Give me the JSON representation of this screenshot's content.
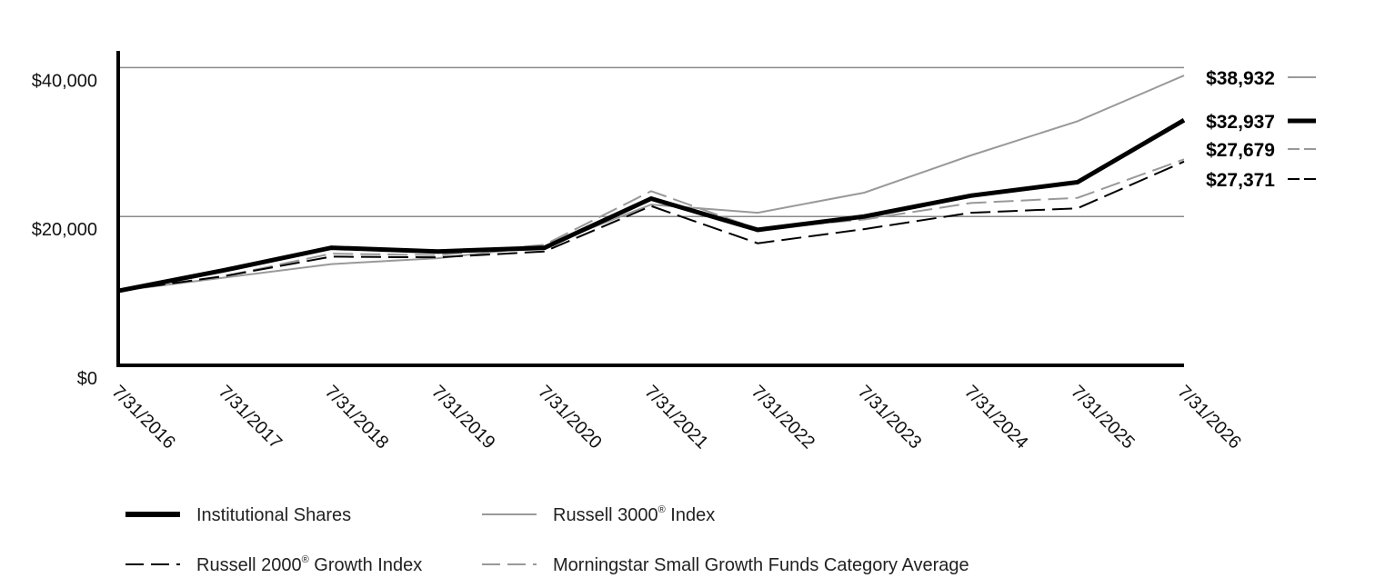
{
  "chart_data": {
    "type": "line",
    "categories": [
      "7/31/2016",
      "7/31/2017",
      "7/31/2018",
      "7/31/2019",
      "7/31/2020",
      "7/31/2021",
      "7/31/2022",
      "7/31/2023",
      "7/31/2024",
      "7/31/2025",
      "7/31/2026"
    ],
    "ylim": [
      0,
      42000
    ],
    "yticks": [
      {
        "value": 0,
        "label": "$0"
      },
      {
        "value": 20000,
        "label": "$20,000"
      },
      {
        "value": 40000,
        "label": "$40,000"
      }
    ],
    "gridlines": [
      20000,
      40000
    ],
    "series": [
      {
        "name": "Institutional Shares",
        "color": "#000000",
        "style": "solid-thick",
        "values": [
          10000,
          12800,
          15800,
          15300,
          15800,
          22400,
          18200,
          20000,
          22800,
          24600,
          32937
        ],
        "end_label": "$32,937"
      },
      {
        "name": "Russell 3000",
        "name_mark": "®",
        "name_suffix": " Index",
        "color": "#999999",
        "style": "solid-thin",
        "values": [
          10000,
          11800,
          13600,
          14400,
          16000,
          21600,
          20500,
          23200,
          28200,
          32800,
          38932
        ],
        "end_label": "$38,932"
      },
      {
        "name": "Russell 2000",
        "name_mark": "®",
        "name_suffix": " Growth Index",
        "color": "#000000",
        "style": "dash-dark",
        "values": [
          10000,
          12000,
          14600,
          14500,
          15300,
          21400,
          16400,
          18300,
          20500,
          21100,
          27371
        ],
        "end_label": "$27,371"
      },
      {
        "name": "Morningstar Small Growth Funds Category Average",
        "color": "#999999",
        "style": "dash-gray",
        "values": [
          10000,
          12000,
          15000,
          14800,
          16200,
          23400,
          18300,
          19600,
          21800,
          22500,
          27679
        ],
        "end_label": "$27,679"
      }
    ]
  }
}
